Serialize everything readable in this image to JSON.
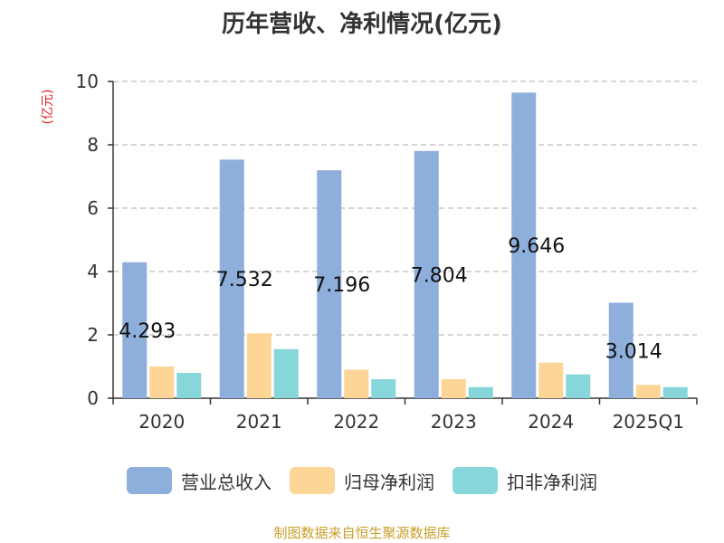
{
  "chart_data": {
    "type": "bar",
    "title": "历年营收、净利情况(亿元)",
    "ylabel": "(亿元)",
    "categories": [
      "2020",
      "2021",
      "2022",
      "2023",
      "2024",
      "2025Q1"
    ],
    "series": [
      {
        "name": "营业总收入",
        "color": "#8eaedc",
        "values": [
          4.293,
          7.532,
          7.196,
          7.804,
          9.646,
          3.014
        ],
        "labels": [
          "4.293",
          "7.532",
          "7.196",
          "7.804",
          "9.646",
          "3.014"
        ]
      },
      {
        "name": "归母净利润",
        "color": "#fdd596",
        "values": [
          1.0,
          2.05,
          0.9,
          0.6,
          1.12,
          0.42
        ]
      },
      {
        "name": "扣非净利润",
        "color": "#87d6d9",
        "values": [
          0.8,
          1.55,
          0.6,
          0.35,
          0.75,
          0.35
        ]
      }
    ],
    "ylim": [
      0,
      10
    ],
    "yticks": [
      0,
      2,
      4,
      6,
      8,
      10
    ],
    "grid": true,
    "legend_position": "bottom"
  },
  "source": "制图数据来自恒生聚源数据库"
}
